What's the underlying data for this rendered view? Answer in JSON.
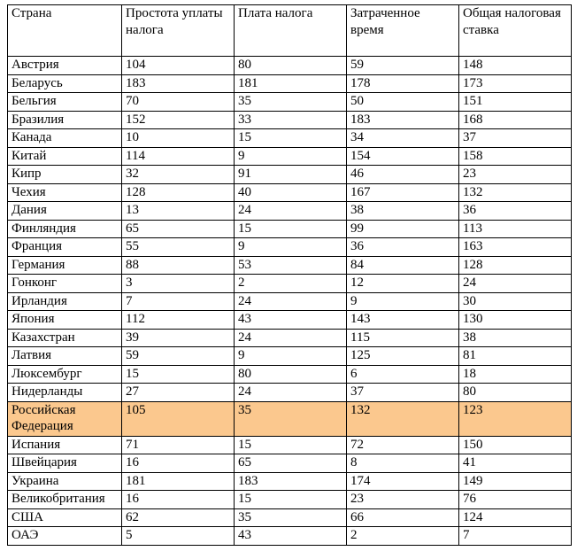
{
  "table": {
    "columns": [
      "Страна",
      "Простота уплаты налога",
      "Плата налога",
      "Затраченное время",
      "Общая налоговая ставка"
    ],
    "rows": [
      {
        "country": "Австрия",
        "values": [
          104,
          80,
          59,
          148
        ],
        "highlighted": false
      },
      {
        "country": "Беларусь",
        "values": [
          183,
          181,
          178,
          173
        ],
        "highlighted": false
      },
      {
        "country": "Бельгия",
        "values": [
          70,
          35,
          50,
          151
        ],
        "highlighted": false
      },
      {
        "country": "Бразилия",
        "values": [
          152,
          33,
          183,
          168
        ],
        "highlighted": false
      },
      {
        "country": "Канада",
        "values": [
          10,
          15,
          34,
          37
        ],
        "highlighted": false
      },
      {
        "country": "Китай",
        "values": [
          114,
          9,
          154,
          158
        ],
        "highlighted": false
      },
      {
        "country": "Кипр",
        "values": [
          32,
          91,
          46,
          23
        ],
        "highlighted": false
      },
      {
        "country": "Чехия",
        "values": [
          128,
          40,
          167,
          132
        ],
        "highlighted": false
      },
      {
        "country": "Дания",
        "values": [
          13,
          24,
          38,
          36
        ],
        "highlighted": false
      },
      {
        "country": "Финляндия",
        "values": [
          65,
          15,
          99,
          113
        ],
        "highlighted": false
      },
      {
        "country": "Франция",
        "values": [
          55,
          9,
          36,
          163
        ],
        "highlighted": false
      },
      {
        "country": "Германия",
        "values": [
          88,
          53,
          84,
          128
        ],
        "highlighted": false
      },
      {
        "country": "Гонконг",
        "values": [
          3,
          2,
          12,
          24
        ],
        "highlighted": false
      },
      {
        "country": "Ирландия",
        "values": [
          7,
          24,
          9,
          30
        ],
        "highlighted": false
      },
      {
        "country": "Япония",
        "values": [
          112,
          43,
          143,
          130
        ],
        "highlighted": false
      },
      {
        "country": "Казахстран",
        "values": [
          39,
          24,
          115,
          38
        ],
        "highlighted": false
      },
      {
        "country": "Латвия",
        "values": [
          59,
          9,
          125,
          81
        ],
        "highlighted": false
      },
      {
        "country": "Люксембург",
        "values": [
          15,
          80,
          6,
          18
        ],
        "highlighted": false
      },
      {
        "country": "Нидерланды",
        "values": [
          27,
          24,
          37,
          80
        ],
        "highlighted": false
      },
      {
        "country": "Российская Федерация",
        "values": [
          105,
          35,
          132,
          123
        ],
        "highlighted": true
      },
      {
        "country": "Испания",
        "values": [
          71,
          15,
          72,
          150
        ],
        "highlighted": false
      },
      {
        "country": "Швейцария",
        "values": [
          16,
          65,
          8,
          41
        ],
        "highlighted": false
      },
      {
        "country": "Украина",
        "values": [
          181,
          183,
          174,
          149
        ],
        "highlighted": false
      },
      {
        "country": "Великобритания",
        "values": [
          16,
          15,
          23,
          76
        ],
        "highlighted": false
      },
      {
        "country": "США",
        "values": [
          62,
          35,
          66,
          124
        ],
        "highlighted": false
      },
      {
        "country": "ОАЭ",
        "values": [
          5,
          43,
          2,
          7
        ],
        "highlighted": false
      }
    ]
  },
  "colors": {
    "highlight": "#FBC88E",
    "border": "#000000",
    "background": "#FFFFFF",
    "text": "#000000"
  }
}
